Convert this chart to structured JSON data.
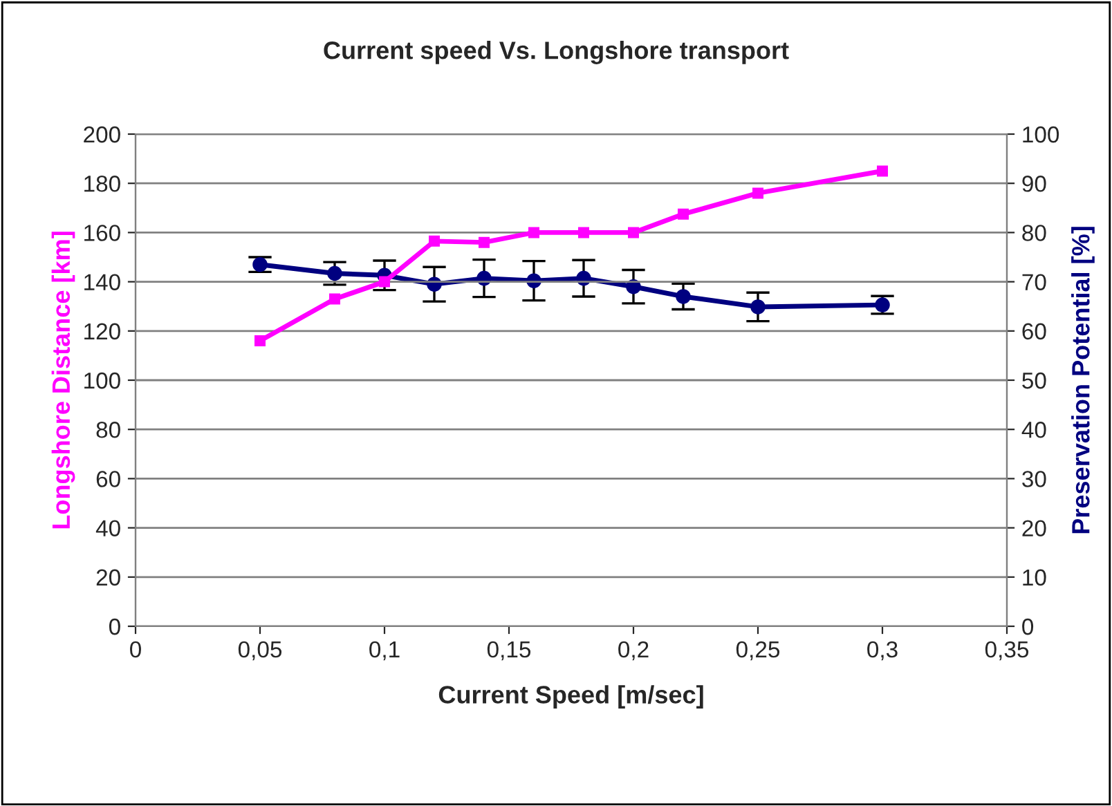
{
  "chart_data": {
    "type": "line",
    "title": "Current speed Vs. Longshore transport",
    "xlabel": "Current Speed [m/sec]",
    "ylabel": "Longshore Distance [km]",
    "y2label": "Preservation Potential [%]",
    "x": [
      0.05,
      0.08,
      0.1,
      0.12,
      0.14,
      0.16,
      0.18,
      0.2,
      0.22,
      0.25,
      0.3
    ],
    "series": [
      {
        "color": "#ff00ff",
        "marker": "square",
        "values": [
          116,
          133,
          140,
          156.5,
          156,
          160,
          160,
          160,
          167.5,
          176,
          185
        ]
      },
      {
        "color": "#000080",
        "marker": "circle",
        "axis": "y2",
        "values": [
          73.5,
          71.7,
          71.3,
          69.5,
          70.7,
          70.2,
          70.7,
          69,
          67,
          64.9,
          65.3
        ],
        "errors": [
          1.5,
          2.3,
          3,
          3.5,
          3.8,
          4,
          3.7,
          3.4,
          2.6,
          2.9,
          1.8
        ]
      }
    ],
    "xlim": [
      0,
      0.35
    ],
    "xticks": [
      0,
      {
        "value": 0.05,
        "label": "0,05"
      },
      {
        "value": 0.1,
        "label": "0,1"
      },
      {
        "value": 0.15,
        "label": "0,15"
      },
      {
        "value": 0.2,
        "label": "0,2"
      },
      {
        "value": 0.25,
        "label": "0,25"
      },
      {
        "value": 0.3,
        "label": "0,3"
      },
      {
        "value": 0.35,
        "label": "0,35"
      }
    ],
    "ylim": [
      0,
      200
    ],
    "yticks": [
      0,
      20,
      40,
      60,
      80,
      100,
      120,
      140,
      160,
      180,
      200
    ],
    "y2lim": [
      0,
      100
    ],
    "y2ticks": [
      0,
      10,
      20,
      30,
      40,
      50,
      60,
      70,
      80,
      90,
      100
    ],
    "grid": "y",
    "line_style": "solid"
  }
}
